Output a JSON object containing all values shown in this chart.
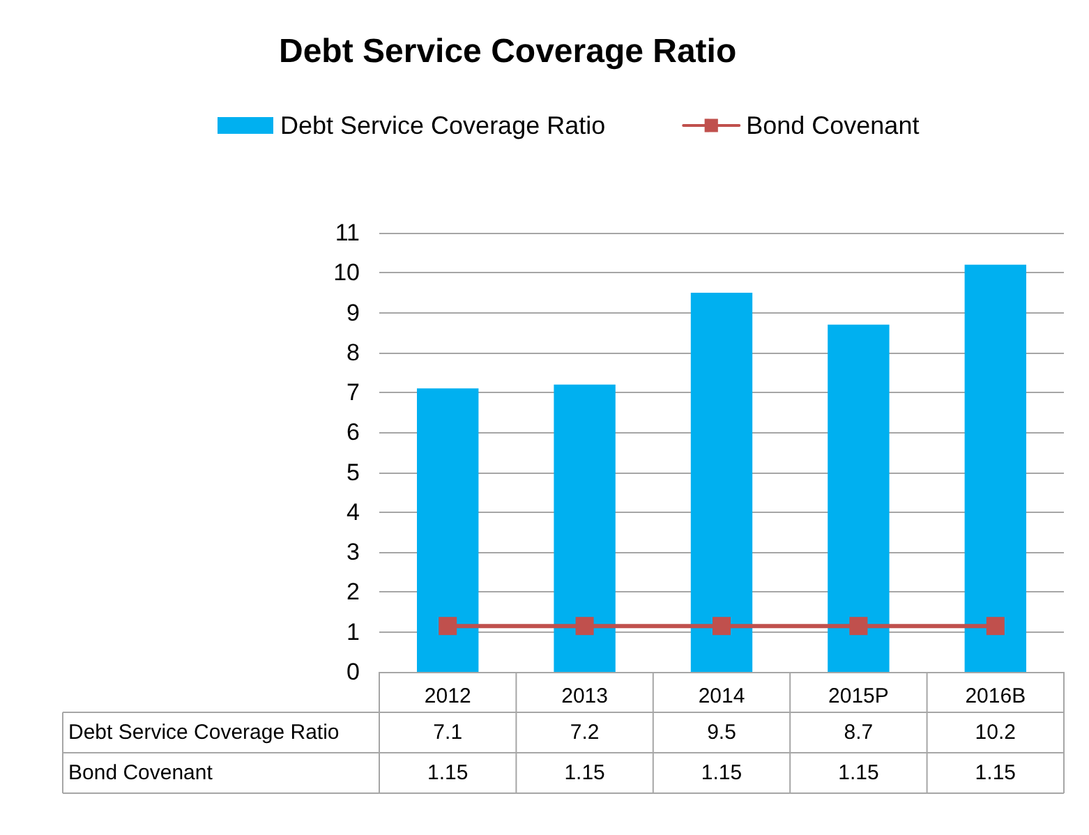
{
  "chart_data": {
    "type": "bar",
    "title": "Debt Service Coverage Ratio",
    "categories": [
      "2012",
      "2013",
      "2014",
      "2015P",
      "2016B"
    ],
    "series": [
      {
        "name": "Debt Service Coverage Ratio",
        "color": "#00b0f0",
        "values": [
          7.1,
          7.2,
          9.5,
          8.7,
          10.2
        ]
      },
      {
        "name": "Bond Covenant",
        "type": "line",
        "color": "#c0504d",
        "values": [
          1.15,
          1.15,
          1.15,
          1.15,
          1.15
        ]
      }
    ],
    "ylim": [
      0,
      11
    ],
    "yticks": [
      0,
      1,
      2,
      3,
      4,
      5,
      6,
      7,
      8,
      9,
      10,
      11
    ],
    "grid": "y",
    "legend": "top",
    "marker": "square",
    "line_style": "solid",
    "data_labels": true
  }
}
